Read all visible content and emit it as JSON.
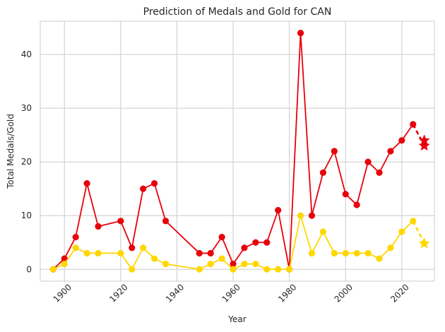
{
  "chart_data": {
    "type": "line",
    "title": "Prediction of Medals and Gold for CAN",
    "xlabel": "Year",
    "ylabel": "Total Medals/Gold",
    "xlim": [
      1891.4,
      2031.6
    ],
    "ylim": [
      -2.2,
      46.2
    ],
    "xticks": [
      1900,
      1920,
      1940,
      1960,
      1980,
      2000,
      2020
    ],
    "yticks": [
      0,
      10,
      20,
      30,
      40
    ],
    "grid": true,
    "series": [
      {
        "color": "#e8000b",
        "x": [
          1896,
          1900,
          1904,
          1908,
          1912,
          1920,
          1924,
          1928,
          1932,
          1936,
          1948,
          1952,
          1956,
          1960,
          1964,
          1968,
          1972,
          1976,
          1980,
          1984,
          1988,
          1992,
          1996,
          2000,
          2004,
          2008,
          2012,
          2016,
          2020,
          2024
        ],
        "values": [
          0,
          2,
          6,
          16,
          8,
          9,
          4,
          15,
          16,
          9,
          3,
          3,
          6,
          1,
          4,
          5,
          5,
          11,
          0,
          44,
          10,
          18,
          22,
          14,
          12,
          20,
          18,
          22,
          24,
          27
        ],
        "prediction": {
          "x": [
            2024,
            2028
          ],
          "values": [
            27,
            23
          ]
        },
        "prediction_markers": [
          24,
          23
        ]
      },
      {
        "color": "#ffd700",
        "x": [
          1896,
          1900,
          1904,
          1908,
          1912,
          1920,
          1924,
          1928,
          1932,
          1936,
          1948,
          1952,
          1956,
          1960,
          1964,
          1968,
          1972,
          1976,
          1980,
          1984,
          1988,
          1992,
          1996,
          2000,
          2004,
          2008,
          2012,
          2016,
          2020,
          2024
        ],
        "values": [
          0,
          1,
          4,
          3,
          3,
          3,
          0,
          4,
          2,
          1,
          0,
          1,
          2,
          0,
          1,
          1,
          0,
          0,
          0,
          10,
          3,
          7,
          3,
          3,
          3,
          3,
          2,
          4,
          7,
          9
        ],
        "prediction": {
          "x": [
            2024,
            2028
          ],
          "values": [
            9,
            4.8
          ]
        },
        "prediction_markers": [
          4.8
        ]
      }
    ]
  }
}
